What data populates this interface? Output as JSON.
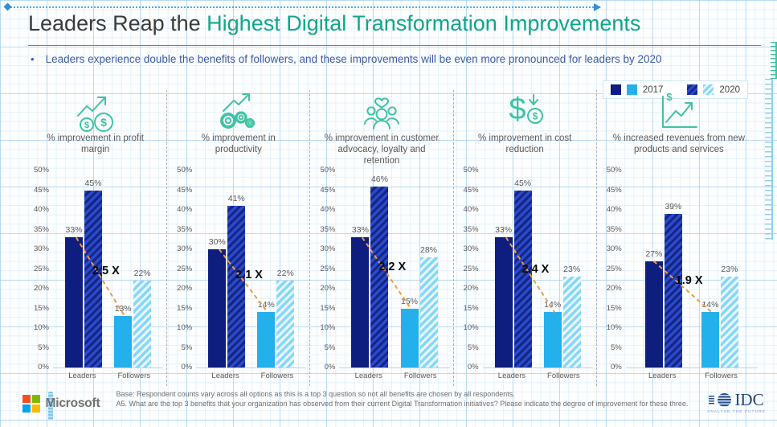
{
  "page": {
    "title_prefix": "Leaders Reap the ",
    "title_highlight": "Highest Digital Transformation Improvements",
    "subtitle_bullet": "Leaders experience double the benefits of followers, and these improvements will be even more pronounced for leaders by 2020",
    "bullet_glyph": "•"
  },
  "legend": {
    "items": [
      {
        "label": "2017",
        "style": "solid"
      },
      {
        "label": "2020",
        "style": "hatched"
      }
    ]
  },
  "colors": {
    "title_accent_green": "#10A689",
    "subtitle_blue": "#3D59A9",
    "leaders_2017": "#0D1E7E",
    "leaders_2020_base": "#2A49CD",
    "leaders_2020_stripe": "#14267F",
    "followers_2017": "#24B0EB",
    "followers_2020_base": "#86D7F8",
    "followers_2020_stripe": "#E9F8FE",
    "ratio_line": "#F09A3C"
  },
  "chart_data": [
    {
      "type": "bar",
      "title": "% improvement in profit margin",
      "icon": "trend-up-coins-icon",
      "categories": [
        "Leaders",
        "Followers"
      ],
      "series": [
        {
          "name": "2017",
          "values": [
            33,
            13
          ]
        },
        {
          "name": "2020",
          "values": [
            45,
            22
          ]
        }
      ],
      "ratio_label": "2.5 X",
      "ylabel": "",
      "xlabel": "",
      "ylim": [
        0,
        50
      ],
      "ytick_step": 5,
      "ytick_suffix": "%",
      "grid": false
    },
    {
      "type": "bar",
      "title": "% improvement in productivity",
      "icon": "gears-trend-up-icon",
      "categories": [
        "Leaders",
        "Followers"
      ],
      "series": [
        {
          "name": "2017",
          "values": [
            30,
            14
          ]
        },
        {
          "name": "2020",
          "values": [
            41,
            22
          ]
        }
      ],
      "ratio_label": "2.1 X",
      "ylabel": "",
      "xlabel": "",
      "ylim": [
        0,
        50
      ],
      "ytick_step": 5,
      "ytick_suffix": "%",
      "grid": false
    },
    {
      "type": "bar",
      "title": "% improvement in customer advocacy, loyalty and retention",
      "icon": "people-heart-icon",
      "categories": [
        "Leaders",
        "Followers"
      ],
      "series": [
        {
          "name": "2017",
          "values": [
            33,
            15
          ]
        },
        {
          "name": "2020",
          "values": [
            46,
            28
          ]
        }
      ],
      "ratio_label": "2.2 X",
      "ylabel": "",
      "xlabel": "",
      "ylim": [
        0,
        50
      ],
      "ytick_step": 5,
      "ytick_suffix": "%",
      "grid": false
    },
    {
      "type": "bar",
      "title": "% improvement in cost reduction",
      "icon": "dollar-down-arrow-coin-icon",
      "categories": [
        "Leaders",
        "Followers"
      ],
      "series": [
        {
          "name": "2017",
          "values": [
            33,
            14
          ]
        },
        {
          "name": "2020",
          "values": [
            45,
            23
          ]
        }
      ],
      "ratio_label": "2.4 X",
      "ylabel": "",
      "xlabel": "",
      "ylim": [
        0,
        50
      ],
      "ytick_step": 5,
      "ytick_suffix": "%",
      "grid": false
    },
    {
      "type": "bar",
      "title": "% increased revenues from new products and services",
      "icon": "chart-axes-trend-dollar-icon",
      "categories": [
        "Leaders",
        "Followers"
      ],
      "series": [
        {
          "name": "2017",
          "values": [
            27,
            14
          ]
        },
        {
          "name": "2020",
          "values": [
            39,
            23
          ]
        }
      ],
      "ratio_label": "1.9 X",
      "ylabel": "",
      "xlabel": "",
      "ylim": [
        0,
        50
      ],
      "ytick_step": 5,
      "ytick_suffix": "%",
      "grid": false
    }
  ],
  "footer": {
    "microsoft_wordmark": "Microsoft",
    "note_line1": "Base: Respondent counts vary across all options as this is a top 3 question so not all benefits are chosen by all respondents.",
    "note_line2": "A5. What are the top 3 benefits that your organization has observed from their current Digital Transformation initiatives? Please indicate the degree of improvement for these three.",
    "idc_wordmark": "IDC",
    "idc_tagline": "ANALYZE THE FUTURE"
  }
}
